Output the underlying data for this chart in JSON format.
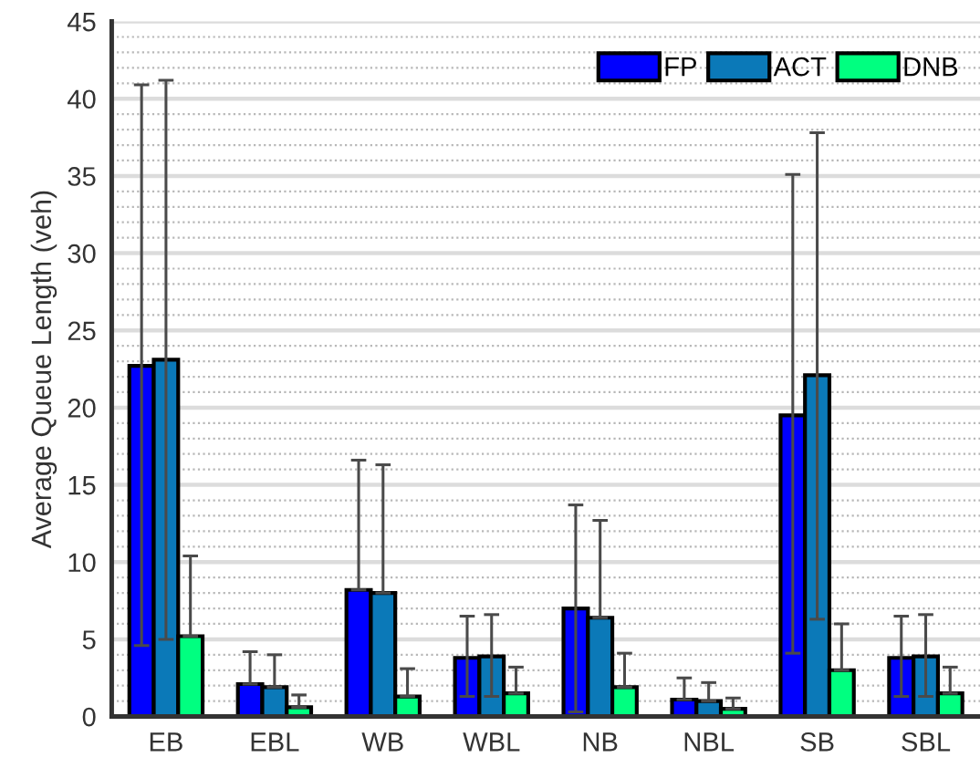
{
  "chart_data": {
    "type": "bar",
    "ylabel": "Average Queue Length (veh)",
    "categories": [
      "EB",
      "EBL",
      "WB",
      "WBL",
      "NB",
      "NBL",
      "SB",
      "SBL"
    ],
    "series": [
      {
        "name": "FP",
        "color": "#0000ff",
        "values": [
          22.7,
          2.1,
          8.2,
          3.8,
          7.0,
          1.1,
          19.5,
          3.8
        ],
        "errors": [
          [
            4.6,
            40.9
          ],
          [
            2.1,
            4.2
          ],
          [
            8.2,
            16.6
          ],
          [
            1.3,
            6.5
          ],
          [
            0.3,
            13.7
          ],
          [
            1.1,
            2.5
          ],
          [
            4.1,
            35.1
          ],
          [
            1.3,
            6.5
          ]
        ]
      },
      {
        "name": "ACT",
        "color": "#0b79b8",
        "values": [
          23.1,
          1.9,
          8.0,
          3.9,
          6.4,
          1.0,
          22.1,
          3.9
        ],
        "errors": [
          [
            5.0,
            41.2
          ],
          [
            1.9,
            4.0
          ],
          [
            8.0,
            16.3
          ],
          [
            1.3,
            6.6
          ],
          [
            6.4,
            12.7
          ],
          [
            1.0,
            2.2
          ],
          [
            6.3,
            37.8
          ],
          [
            1.3,
            6.6
          ]
        ]
      },
      {
        "name": "DNB",
        "color": "#00ff80",
        "values": [
          5.2,
          0.6,
          1.3,
          1.5,
          1.9,
          0.5,
          3.0,
          1.5
        ],
        "errors": [
          [
            5.2,
            10.4
          ],
          [
            0.6,
            1.4
          ],
          [
            1.3,
            3.1
          ],
          [
            1.5,
            3.2
          ],
          [
            1.9,
            4.1
          ],
          [
            0.5,
            1.2
          ],
          [
            3.0,
            6.0
          ],
          [
            1.5,
            3.2
          ]
        ]
      }
    ],
    "ylim": [
      0,
      45
    ],
    "yticks": [
      0,
      5,
      10,
      15,
      20,
      25,
      30,
      35,
      40,
      45
    ],
    "grid": "y",
    "legend": "top right"
  }
}
